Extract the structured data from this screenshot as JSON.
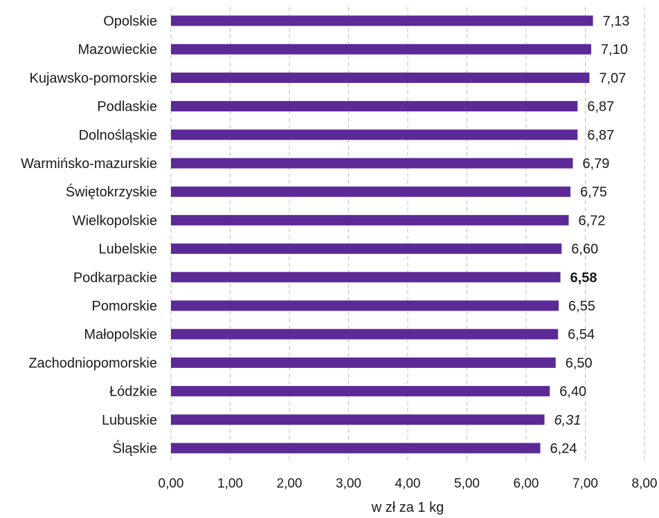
{
  "chart_data": {
    "type": "bar",
    "orientation": "horizontal",
    "categories": [
      "Opolskie",
      "Mazowieckie",
      "Kujawsko-pomorskie",
      "Podlaskie",
      "Dolnośląskie",
      "Warmińsko-mazurskie",
      "Świętokrzyskie",
      "Wielkopolskie",
      "Lubelskie",
      "Podkarpackie",
      "Pomorskie",
      "Małopolskie",
      "Zachodniopomorskie",
      "Łódzkie",
      "Lubuskie",
      "Śląskie"
    ],
    "values": [
      7.13,
      7.1,
      7.07,
      6.87,
      6.87,
      6.79,
      6.75,
      6.72,
      6.6,
      6.58,
      6.55,
      6.54,
      6.5,
      6.4,
      6.31,
      6.24
    ],
    "value_labels": [
      "7,13",
      "7,10",
      "7,07",
      "6,87",
      "6,87",
      "6,79",
      "6,75",
      "6,72",
      "6,60",
      "6,58",
      "6,55",
      "6,54",
      "6,50",
      "6,40",
      "6,31",
      "6,24"
    ],
    "emphasis": {
      "bold": [
        "Podkarpackie"
      ],
      "italic": [
        "Lubuskie"
      ]
    },
    "xlim": [
      0,
      8
    ],
    "x_ticks": [
      0,
      1,
      2,
      3,
      4,
      5,
      6,
      7,
      8
    ],
    "x_tick_labels": [
      "0,00",
      "1,00",
      "2,00",
      "3,00",
      "4,00",
      "5,00",
      "6,00",
      "7,00",
      "8,00"
    ],
    "xlabel": "w zł za 1 kg",
    "ylabel": "",
    "title": "",
    "grid": "vertical dashed",
    "legend": "none",
    "bar_color": "#5b2a97",
    "text_color": "#1a1a1a",
    "grid_color": "#bfbfbf"
  }
}
